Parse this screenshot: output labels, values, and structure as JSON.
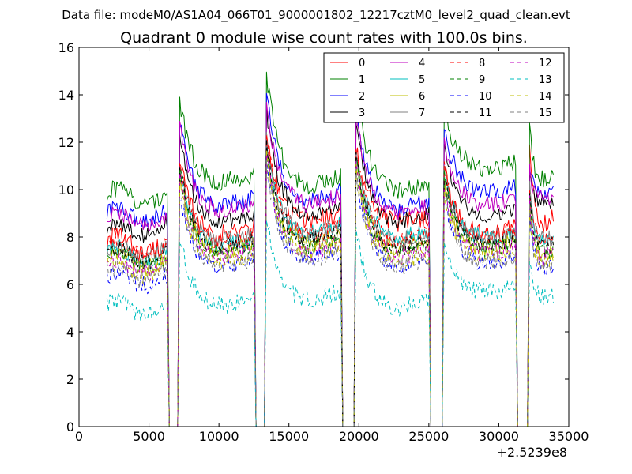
{
  "chart_data": {
    "type": "line",
    "suptitle": "Data file: modeM0/AS1A04_066T01_9000001802_12217cztM0_level2_quad_clean.evt",
    "title": "Quadrant 0 module wise count rates with 100.0s bins.",
    "xlabel": "",
    "ylabel": "",
    "x_offset_label": "+2.5239e8",
    "xlim": [
      0,
      35000
    ],
    "ylim": [
      0,
      16
    ],
    "xticks": [
      0,
      5000,
      10000,
      15000,
      20000,
      25000,
      30000,
      35000
    ],
    "xtick_labels": [
      "0",
      "5000",
      "10000",
      "15000",
      "20000",
      "25000",
      "30000",
      "35000"
    ],
    "yticks": [
      0,
      2,
      4,
      6,
      8,
      10,
      12,
      14,
      16
    ],
    "ytick_labels": [
      "0",
      "2",
      "4",
      "6",
      "8",
      "10",
      "12",
      "14",
      "16"
    ],
    "legend_position": "top-right",
    "legend_columns": 4,
    "data_gaps": [
      [
        6300,
        7200
      ],
      [
        12500,
        13400
      ],
      [
        18700,
        19800
      ],
      [
        25000,
        26100
      ],
      [
        31200,
        32200
      ]
    ],
    "x_start": 2000,
    "x_end": 33900,
    "series": [
      {
        "name": "0",
        "color": "#ff0000",
        "style": "solid",
        "segments": [
          [
            8.3,
            7.4
          ],
          [
            11.2,
            8.0
          ],
          [
            12.2,
            8.6
          ],
          [
            11.8,
            8.5
          ],
          [
            11.0,
            8.0
          ],
          [
            12.0,
            8.4
          ]
        ]
      },
      {
        "name": "1",
        "color": "#008000",
        "style": "solid",
        "segments": [
          [
            10.2,
            9.5
          ],
          [
            13.7,
            10.2
          ],
          [
            15.0,
            10.0
          ],
          [
            14.5,
            9.8
          ],
          [
            13.6,
            10.8
          ],
          [
            12.6,
            10.3
          ]
        ]
      },
      {
        "name": "2",
        "color": "#0000ff",
        "style": "solid",
        "segments": [
          [
            9.2,
            8.8
          ],
          [
            12.9,
            9.2
          ],
          [
            14.3,
            9.3
          ],
          [
            13.5,
            9.0
          ],
          [
            12.7,
            9.8
          ],
          [
            11.1,
            9.7
          ]
        ]
      },
      {
        "name": "3",
        "color": "#000000",
        "style": "solid",
        "segments": [
          [
            8.3,
            8.3
          ],
          [
            12.3,
            8.5
          ],
          [
            13.4,
            8.8
          ],
          [
            13.0,
            8.5
          ],
          [
            12.0,
            8.8
          ],
          [
            10.6,
            9.4
          ]
        ]
      },
      {
        "name": "4",
        "color": "#bf00bf",
        "style": "solid",
        "segments": [
          [
            9.0,
            8.6
          ],
          [
            12.6,
            9.0
          ],
          [
            13.6,
            9.2
          ],
          [
            13.3,
            8.8
          ],
          [
            12.2,
            9.2
          ],
          [
            10.8,
            9.6
          ]
        ]
      },
      {
        "name": "5",
        "color": "#00bfbf",
        "style": "solid",
        "segments": [
          [
            7.6,
            7.0
          ],
          [
            10.8,
            7.5
          ],
          [
            12.0,
            8.0
          ],
          [
            11.6,
            7.8
          ],
          [
            10.6,
            7.9
          ],
          [
            9.8,
            7.6
          ]
        ]
      },
      {
        "name": "6",
        "color": "#bfbf00",
        "style": "solid",
        "segments": [
          [
            7.3,
            6.8
          ],
          [
            10.6,
            7.3
          ],
          [
            11.8,
            7.6
          ],
          [
            11.3,
            7.4
          ],
          [
            10.4,
            7.4
          ],
          [
            9.6,
            7.2
          ]
        ]
      },
      {
        "name": "7",
        "color": "#808080",
        "style": "solid",
        "segments": [
          [
            7.7,
            7.2
          ],
          [
            11.0,
            7.7
          ],
          [
            12.2,
            8.0
          ],
          [
            11.8,
            7.7
          ],
          [
            10.8,
            7.9
          ],
          [
            10.0,
            7.8
          ]
        ]
      },
      {
        "name": "8",
        "color": "#ff0000",
        "style": "dashed",
        "segments": [
          [
            7.8,
            7.3
          ],
          [
            11.2,
            7.6
          ],
          [
            12.3,
            7.9
          ],
          [
            11.9,
            7.6
          ],
          [
            10.9,
            7.9
          ],
          [
            10.1,
            7.8
          ]
        ]
      },
      {
        "name": "9",
        "color": "#008000",
        "style": "dashed",
        "segments": [
          [
            7.4,
            6.9
          ],
          [
            10.7,
            7.2
          ],
          [
            11.9,
            7.4
          ],
          [
            11.4,
            7.2
          ],
          [
            10.5,
            7.4
          ],
          [
            9.7,
            7.2
          ]
        ]
      },
      {
        "name": "10",
        "color": "#0000ff",
        "style": "dashed",
        "segments": [
          [
            6.6,
            6.1
          ],
          [
            9.8,
            6.6
          ],
          [
            11.2,
            6.9
          ],
          [
            10.8,
            6.6
          ],
          [
            9.9,
            6.8
          ],
          [
            9.2,
            6.6
          ]
        ]
      },
      {
        "name": "11",
        "color": "#000000",
        "style": "dashed",
        "segments": [
          [
            7.5,
            7.0
          ],
          [
            10.9,
            7.4
          ],
          [
            12.0,
            7.7
          ],
          [
            11.6,
            7.4
          ],
          [
            10.7,
            7.6
          ],
          [
            9.9,
            7.4
          ]
        ]
      },
      {
        "name": "12",
        "color": "#bf00bf",
        "style": "dashed",
        "segments": [
          [
            7.1,
            6.6
          ],
          [
            10.4,
            7.0
          ],
          [
            11.6,
            7.2
          ],
          [
            11.2,
            7.0
          ],
          [
            10.2,
            7.2
          ],
          [
            9.5,
            7.0
          ]
        ]
      },
      {
        "name": "13",
        "color": "#00bfbf",
        "style": "dashed",
        "segments": [
          [
            5.4,
            4.9
          ],
          [
            8.0,
            5.0
          ],
          [
            9.0,
            5.2
          ],
          [
            8.4,
            4.9
          ],
          [
            7.9,
            5.6
          ],
          [
            7.2,
            5.4
          ]
        ]
      },
      {
        "name": "14",
        "color": "#bfbf00",
        "style": "dashed",
        "segments": [
          [
            7.0,
            6.5
          ],
          [
            10.2,
            6.9
          ],
          [
            11.4,
            7.1
          ],
          [
            11.0,
            6.8
          ],
          [
            10.0,
            7.0
          ],
          [
            9.3,
            6.8
          ]
        ]
      },
      {
        "name": "15",
        "color": "#808080",
        "style": "dashed",
        "segments": [
          [
            6.8,
            6.3
          ],
          [
            10.0,
            6.7
          ],
          [
            11.2,
            6.9
          ],
          [
            10.8,
            6.6
          ],
          [
            9.8,
            6.8
          ],
          [
            9.1,
            6.6
          ]
        ]
      }
    ]
  }
}
